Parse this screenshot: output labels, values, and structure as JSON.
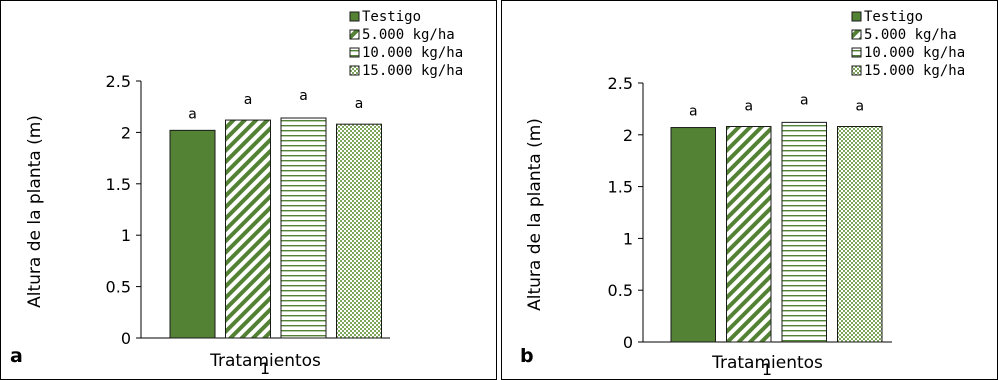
{
  "colors": {
    "green": "#548235",
    "white": "#ffffff"
  },
  "chart_data": [
    {
      "type": "bar",
      "panel_label": "a",
      "categories": [
        "1"
      ],
      "xlabel": "Tratamientos",
      "ylabel": "Altura de la planta (m)",
      "ylim": [
        0,
        2.5
      ],
      "yticks": [
        "0",
        "0.5",
        "1",
        "1.5",
        "2",
        "2.5"
      ],
      "legend_position": "top-right",
      "series": [
        {
          "name": "Testigo",
          "values": [
            2.02
          ],
          "label": "a",
          "fill": "solid"
        },
        {
          "name": "5.000 kg/ha",
          "values": [
            2.12
          ],
          "label": "a",
          "fill": "diagonal"
        },
        {
          "name": "10.000 kg/ha",
          "values": [
            2.14
          ],
          "label": "a",
          "fill": "horizontal"
        },
        {
          "name": "15.000 kg/ha",
          "values": [
            2.08
          ],
          "label": "a",
          "fill": "checker"
        }
      ]
    },
    {
      "type": "bar",
      "panel_label": "b",
      "categories": [
        "1"
      ],
      "xlabel": "Tratamientos",
      "ylabel": "Altura de la planta (m)",
      "ylim": [
        0,
        2.5
      ],
      "yticks": [
        "0",
        "0.5",
        "1",
        "1.5",
        "2",
        "2.5"
      ],
      "legend_position": "top-right",
      "series": [
        {
          "name": "Testigo",
          "values": [
            2.07
          ],
          "label": "a",
          "fill": "solid"
        },
        {
          "name": "5.000 kg/ha",
          "values": [
            2.08
          ],
          "label": "a",
          "fill": "diagonal"
        },
        {
          "name": "10.000 kg/ha",
          "values": [
            2.12
          ],
          "label": "a",
          "fill": "horizontal"
        },
        {
          "name": "15.000 kg/ha",
          "values": [
            2.08
          ],
          "label": "a",
          "fill": "checker"
        }
      ]
    }
  ]
}
